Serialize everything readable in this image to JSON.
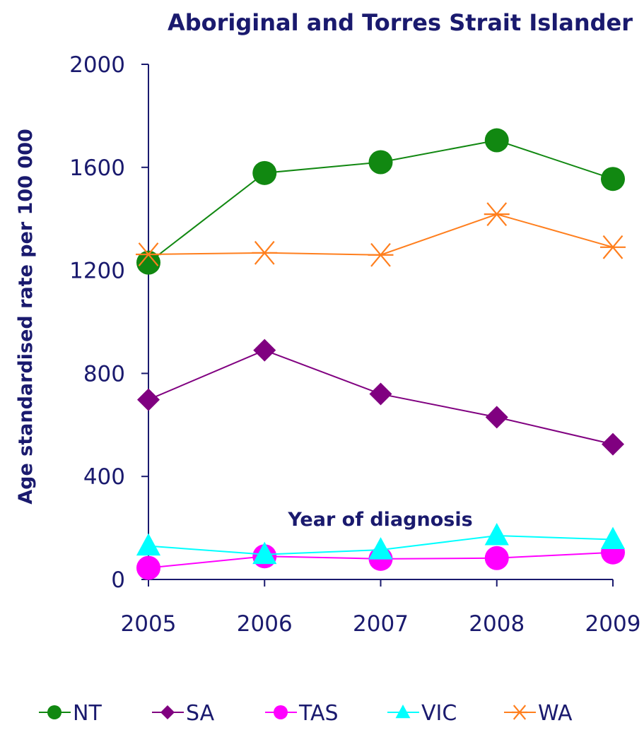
{
  "chart_data": {
    "type": "line",
    "title": "Aboriginal and Torres Strait Islander",
    "xlabel": "Year of diagnosis",
    "ylabel": "Age standardised rate per 100 000",
    "categories": [
      "2005",
      "2006",
      "2007",
      "2008",
      "2009"
    ],
    "yticks": [
      "0",
      "400",
      "800",
      "1200",
      "1600",
      "2000"
    ],
    "ylim": [
      0,
      2000
    ],
    "grid": false,
    "legend_position": "bottom",
    "series": [
      {
        "name": "NT",
        "color": "#118811",
        "marker": "circle",
        "values": [
          1230,
          1578,
          1620,
          1705,
          1555
        ]
      },
      {
        "name": "SA",
        "color": "#800080",
        "marker": "diamond",
        "values": [
          698,
          890,
          720,
          630,
          525
        ]
      },
      {
        "name": "TAS",
        "color": "#ff00ff",
        "marker": "circle",
        "values": [
          45,
          90,
          80,
          83,
          105
        ]
      },
      {
        "name": "VIC",
        "color": "#00ffff",
        "marker": "triangle",
        "values": [
          130,
          97,
          115,
          170,
          155
        ]
      },
      {
        "name": "WA",
        "color": "#ff7f1e",
        "marker": "star",
        "values": [
          1262,
          1268,
          1260,
          1418,
          1290
        ]
      }
    ]
  }
}
